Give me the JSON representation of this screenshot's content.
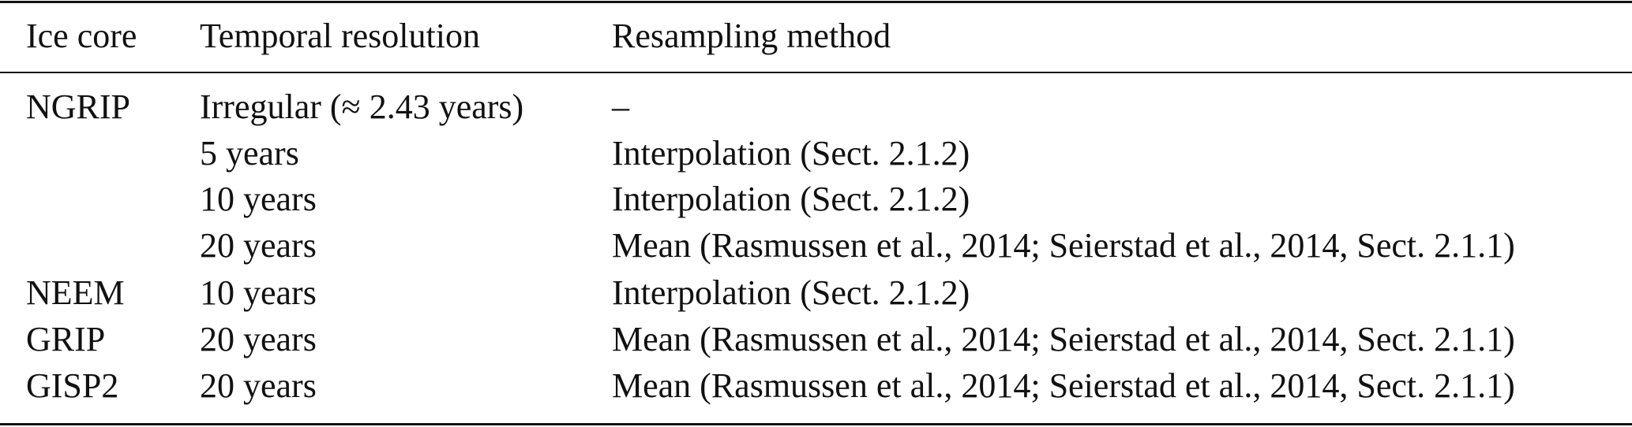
{
  "table": {
    "header": [
      "Ice core",
      "Temporal resolution",
      "Resampling method"
    ],
    "rows": [
      [
        "NGRIP",
        "Irregular (≈ 2.43 years)",
        "–"
      ],
      [
        null,
        "5 years",
        "Interpolation (Sect. 2.1.2)"
      ],
      [
        null,
        "10 years",
        "Interpolation (Sect. 2.1.2)"
      ],
      [
        null,
        "20 years",
        "Mean (Rasmussen et al., 2014; Seierstad et al., 2014, Sect. 2.1.1)"
      ],
      [
        "NEEM",
        "10 years",
        "Interpolation (Sect. 2.1.2)"
      ],
      [
        "GRIP",
        "20 years",
        "Mean (Rasmussen et al., 2014; Seierstad et al., 2014, Sect. 2.1.1)"
      ],
      [
        "GISP2",
        "20 years",
        "Mean (Rasmussen et al., 2014; Seierstad et al., 2014, Sect. 2.1.1)"
      ]
    ]
  }
}
